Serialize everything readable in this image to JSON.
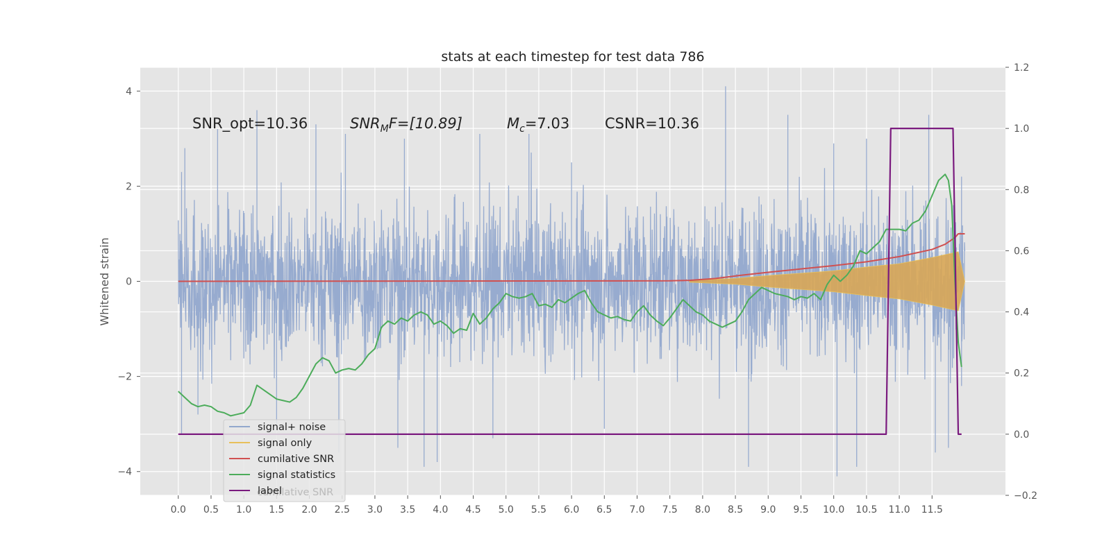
{
  "chart_data": {
    "type": "line",
    "title": "stats at each timestep for test data 786",
    "ylabel": "Whitened strain",
    "xlabel": "",
    "x_ticks": [
      "0.0",
      "0.5",
      "1.0",
      "1.5",
      "2.0",
      "2.5",
      "3.0",
      "3.5",
      "4.0",
      "4.5",
      "5.0",
      "5.5",
      "6.0",
      "6.5",
      "7.0",
      "7.5",
      "8.0",
      "8.5",
      "9.0",
      "9.5",
      "10.0",
      "10.5",
      "11.0",
      "11.5"
    ],
    "y_ticks_left": [
      "4",
      "2",
      "0",
      "−2",
      "−4"
    ],
    "y_ticks_right": [
      "1.2",
      "1.0",
      "0.8",
      "0.6",
      "0.4",
      "0.2",
      "0.0",
      "−0.2"
    ],
    "xlim": [
      -0.58,
      12.62
    ],
    "ylim_left": [
      -4.5,
      4.5
    ],
    "ylim_right": [
      -0.2,
      1.2
    ],
    "grid": true,
    "legend_placement": "lower-left",
    "annotations": {
      "snr_opt": "SNR_opt=10.36",
      "snr_mf_base": "SNR",
      "snr_mf_sub": "M",
      "snr_mf_rest": "F=[10.89]",
      "mc_base": "M",
      "mc_sub": "c",
      "mc_rest": "=7.03",
      "csnr": "CSNR=10.36"
    },
    "ghost_text": "cumilative SNR",
    "series": [
      {
        "name": "signal+ noise",
        "axis": "left",
        "color": "#92a8cd",
        "envelope": {
          "t_start": 0.0,
          "t_end": 12.0,
          "amplitude": 1.9,
          "peaks_high": [
            [
              0.05,
              2.3
            ],
            [
              0.1,
              2.8
            ],
            [
              0.6,
              3.2
            ],
            [
              1.2,
              3.6
            ],
            [
              2.1,
              3.3
            ],
            [
              2.55,
              3.1
            ],
            [
              3.45,
              3.0
            ],
            [
              4.6,
              3.1
            ],
            [
              5.35,
              3.1
            ],
            [
              6.0,
              2.5
            ],
            [
              8.35,
              4.1
            ],
            [
              9.3,
              3.5
            ],
            [
              10.0,
              2.9
            ],
            [
              10.5,
              3.0
            ],
            [
              11.45,
              3.5
            ],
            [
              11.95,
              2.2
            ]
          ],
          "peaks_low": [
            [
              0.05,
              -3.2
            ],
            [
              0.3,
              -2.8
            ],
            [
              1.5,
              -3.0
            ],
            [
              2.45,
              -3.6
            ],
            [
              3.35,
              -3.5
            ],
            [
              3.75,
              -3.9
            ],
            [
              3.95,
              -3.8
            ],
            [
              4.8,
              -3.3
            ],
            [
              6.5,
              -3.1
            ],
            [
              8.7,
              -3.9
            ],
            [
              10.05,
              -4.1
            ],
            [
              10.35,
              -3.9
            ],
            [
              11.55,
              -3.6
            ],
            [
              11.75,
              -3.5
            ],
            [
              11.95,
              -2.2
            ]
          ]
        }
      },
      {
        "name": "signal only",
        "axis": "left",
        "color": "#e8c05a",
        "chirp_envelope": [
          [
            7.8,
            0.02
          ],
          [
            8.5,
            0.06
          ],
          [
            9.0,
            0.12
          ],
          [
            9.5,
            0.17
          ],
          [
            10.0,
            0.22
          ],
          [
            10.5,
            0.3
          ],
          [
            11.0,
            0.37
          ],
          [
            11.5,
            0.5
          ],
          [
            11.9,
            0.62
          ],
          [
            12.0,
            0.0
          ]
        ]
      },
      {
        "name": "cumilative SNR",
        "axis": "left",
        "color": "#d05050",
        "points": [
          [
            0.0,
            0.0
          ],
          [
            7.5,
            0.01
          ],
          [
            7.8,
            0.02
          ],
          [
            8.2,
            0.06
          ],
          [
            8.6,
            0.13
          ],
          [
            9.0,
            0.19
          ],
          [
            9.5,
            0.26
          ],
          [
            10.0,
            0.33
          ],
          [
            10.5,
            0.41
          ],
          [
            11.0,
            0.52
          ],
          [
            11.5,
            0.67
          ],
          [
            11.7,
            0.78
          ],
          [
            11.85,
            0.92
          ],
          [
            11.9,
            1.0
          ],
          [
            12.0,
            1.0
          ]
        ]
      },
      {
        "name": "signal statistics",
        "axis": "right",
        "color": "#4cac5a",
        "points": [
          [
            0.0,
            0.14
          ],
          [
            0.1,
            0.12
          ],
          [
            0.2,
            0.1
          ],
          [
            0.3,
            0.09
          ],
          [
            0.4,
            0.095
          ],
          [
            0.5,
            0.09
          ],
          [
            0.6,
            0.075
          ],
          [
            0.7,
            0.07
          ],
          [
            0.8,
            0.06
          ],
          [
            0.9,
            0.065
          ],
          [
            1.0,
            0.07
          ],
          [
            1.1,
            0.095
          ],
          [
            1.2,
            0.16
          ],
          [
            1.3,
            0.145
          ],
          [
            1.4,
            0.13
          ],
          [
            1.5,
            0.115
          ],
          [
            1.6,
            0.11
          ],
          [
            1.7,
            0.105
          ],
          [
            1.8,
            0.12
          ],
          [
            1.9,
            0.15
          ],
          [
            2.0,
            0.19
          ],
          [
            2.1,
            0.23
          ],
          [
            2.2,
            0.25
          ],
          [
            2.3,
            0.24
          ],
          [
            2.4,
            0.2
          ],
          [
            2.5,
            0.21
          ],
          [
            2.6,
            0.215
          ],
          [
            2.7,
            0.21
          ],
          [
            2.8,
            0.23
          ],
          [
            2.9,
            0.26
          ],
          [
            3.0,
            0.28
          ],
          [
            3.1,
            0.35
          ],
          [
            3.2,
            0.37
          ],
          [
            3.3,
            0.36
          ],
          [
            3.4,
            0.38
          ],
          [
            3.5,
            0.37
          ],
          [
            3.6,
            0.39
          ],
          [
            3.7,
            0.4
          ],
          [
            3.8,
            0.39
          ],
          [
            3.9,
            0.36
          ],
          [
            4.0,
            0.37
          ],
          [
            4.1,
            0.355
          ],
          [
            4.2,
            0.33
          ],
          [
            4.3,
            0.345
          ],
          [
            4.4,
            0.34
          ],
          [
            4.5,
            0.395
          ],
          [
            4.6,
            0.36
          ],
          [
            4.7,
            0.38
          ],
          [
            4.8,
            0.41
          ],
          [
            4.9,
            0.43
          ],
          [
            5.0,
            0.46
          ],
          [
            5.1,
            0.45
          ],
          [
            5.2,
            0.445
          ],
          [
            5.3,
            0.45
          ],
          [
            5.4,
            0.46
          ],
          [
            5.5,
            0.42
          ],
          [
            5.6,
            0.425
          ],
          [
            5.7,
            0.415
          ],
          [
            5.8,
            0.44
          ],
          [
            5.9,
            0.43
          ],
          [
            6.0,
            0.445
          ],
          [
            6.1,
            0.46
          ],
          [
            6.2,
            0.47
          ],
          [
            6.3,
            0.43
          ],
          [
            6.4,
            0.4
          ],
          [
            6.5,
            0.39
          ],
          [
            6.6,
            0.38
          ],
          [
            6.7,
            0.385
          ],
          [
            6.8,
            0.375
          ],
          [
            6.9,
            0.37
          ],
          [
            7.0,
            0.4
          ],
          [
            7.1,
            0.42
          ],
          [
            7.2,
            0.39
          ],
          [
            7.3,
            0.37
          ],
          [
            7.4,
            0.355
          ],
          [
            7.5,
            0.38
          ],
          [
            7.6,
            0.41
          ],
          [
            7.7,
            0.44
          ],
          [
            7.8,
            0.42
          ],
          [
            7.9,
            0.4
          ],
          [
            8.0,
            0.39
          ],
          [
            8.1,
            0.37
          ],
          [
            8.2,
            0.36
          ],
          [
            8.3,
            0.35
          ],
          [
            8.4,
            0.36
          ],
          [
            8.5,
            0.37
          ],
          [
            8.6,
            0.4
          ],
          [
            8.7,
            0.44
          ],
          [
            8.8,
            0.46
          ],
          [
            8.9,
            0.48
          ],
          [
            9.0,
            0.47
          ],
          [
            9.1,
            0.46
          ],
          [
            9.2,
            0.455
          ],
          [
            9.3,
            0.45
          ],
          [
            9.4,
            0.44
          ],
          [
            9.5,
            0.45
          ],
          [
            9.6,
            0.445
          ],
          [
            9.7,
            0.46
          ],
          [
            9.8,
            0.44
          ],
          [
            9.9,
            0.49
          ],
          [
            10.0,
            0.52
          ],
          [
            10.1,
            0.5
          ],
          [
            10.2,
            0.52
          ],
          [
            10.3,
            0.55
          ],
          [
            10.4,
            0.6
          ],
          [
            10.5,
            0.59
          ],
          [
            10.6,
            0.61
          ],
          [
            10.7,
            0.63
          ],
          [
            10.8,
            0.67
          ],
          [
            10.9,
            0.67
          ],
          [
            11.0,
            0.67
          ],
          [
            11.1,
            0.665
          ],
          [
            11.2,
            0.69
          ],
          [
            11.3,
            0.7
          ],
          [
            11.4,
            0.73
          ],
          [
            11.5,
            0.78
          ],
          [
            11.6,
            0.83
          ],
          [
            11.7,
            0.85
          ],
          [
            11.75,
            0.83
          ],
          [
            11.8,
            0.75
          ],
          [
            11.85,
            0.5
          ],
          [
            11.9,
            0.3
          ],
          [
            11.95,
            0.22
          ]
        ]
      },
      {
        "name": "label",
        "axis": "right",
        "color": "#7a1a7e",
        "points": [
          [
            0.0,
            0.0
          ],
          [
            10.8,
            0.0
          ],
          [
            10.87,
            1.0
          ],
          [
            11.82,
            1.0
          ],
          [
            11.9,
            0.0
          ],
          [
            11.95,
            0.0
          ]
        ]
      }
    ]
  }
}
